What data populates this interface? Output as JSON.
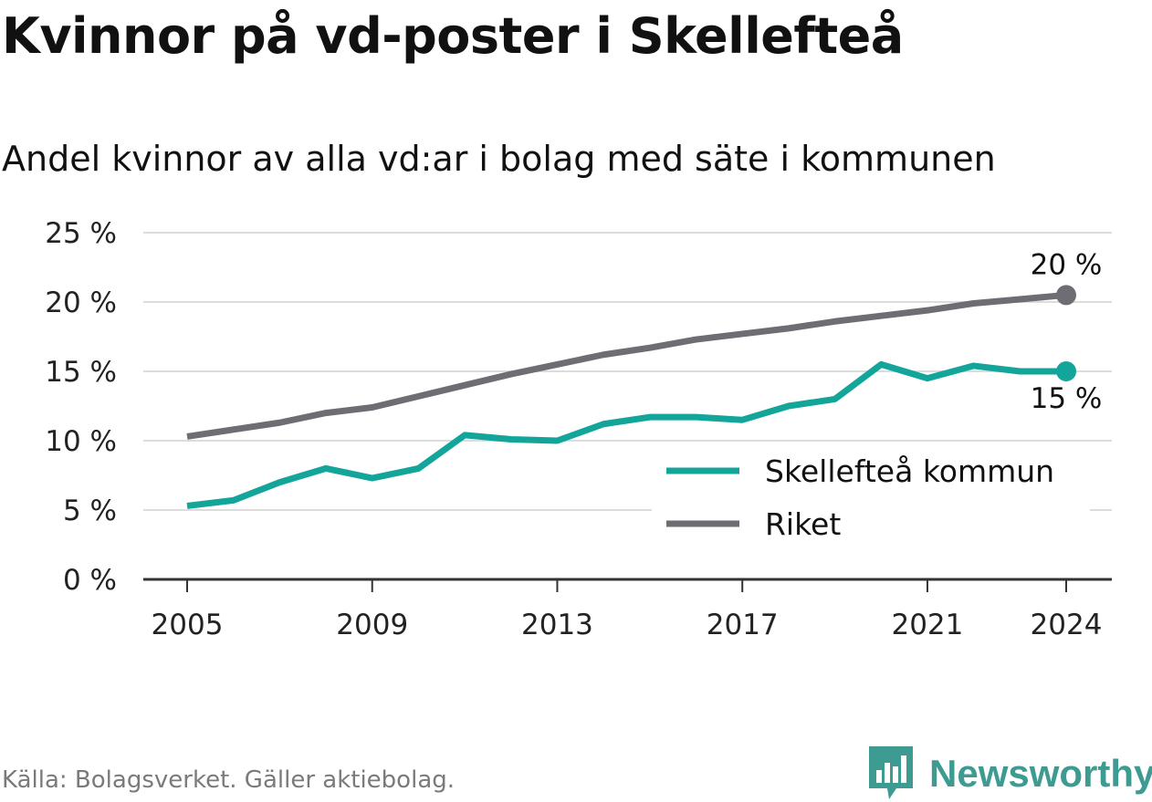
{
  "title": "Kvinnor på vd-poster i Skellefteå",
  "subtitle": "Andel kvinnor av alla vd:ar i bolag med säte i kommunen",
  "source": "Källa: Bolagsverket. Gäller aktiebolag.",
  "brand": "Newsworthy",
  "colors": {
    "skelleftea": "#13a59a",
    "riket": "#6e6d74",
    "brand": "#3d9b92"
  },
  "chart_data": {
    "type": "line",
    "x": [
      2005,
      2006,
      2007,
      2008,
      2009,
      2010,
      2011,
      2012,
      2013,
      2014,
      2015,
      2016,
      2017,
      2018,
      2019,
      2020,
      2021,
      2022,
      2023,
      2024
    ],
    "series": [
      {
        "name": "Skellefteå kommun",
        "color": "#13a59a",
        "values": [
          5.3,
          5.7,
          7.0,
          8.0,
          7.3,
          8.0,
          10.4,
          10.1,
          10.0,
          11.2,
          11.7,
          11.7,
          11.5,
          12.5,
          13.0,
          15.5,
          14.5,
          15.4,
          15.0,
          15.0
        ]
      },
      {
        "name": "Riket",
        "color": "#6e6d74",
        "values": [
          10.3,
          10.8,
          11.3,
          12.0,
          12.4,
          13.2,
          14.0,
          14.8,
          15.5,
          16.2,
          16.7,
          17.3,
          17.7,
          18.1,
          18.6,
          19.0,
          19.4,
          19.9,
          20.2,
          20.5
        ]
      }
    ],
    "xticks": [
      "2005",
      "2009",
      "2013",
      "2017",
      "2021",
      "2024"
    ],
    "xtick_values": [
      2005,
      2009,
      2013,
      2017,
      2021,
      2024
    ],
    "yticks": [
      "0 %",
      "5 %",
      "10 %",
      "15 %",
      "20 %",
      "25 %"
    ],
    "ytick_values": [
      0,
      5,
      10,
      15,
      20,
      25
    ],
    "ylim": [
      0,
      25
    ],
    "xlim": [
      2005,
      2024
    ],
    "grid": true,
    "legend_position": "bottom-right",
    "end_labels": [
      {
        "series": "Riket",
        "text": "20 %"
      },
      {
        "series": "Skellefteå kommun",
        "text": "15 %"
      }
    ]
  }
}
